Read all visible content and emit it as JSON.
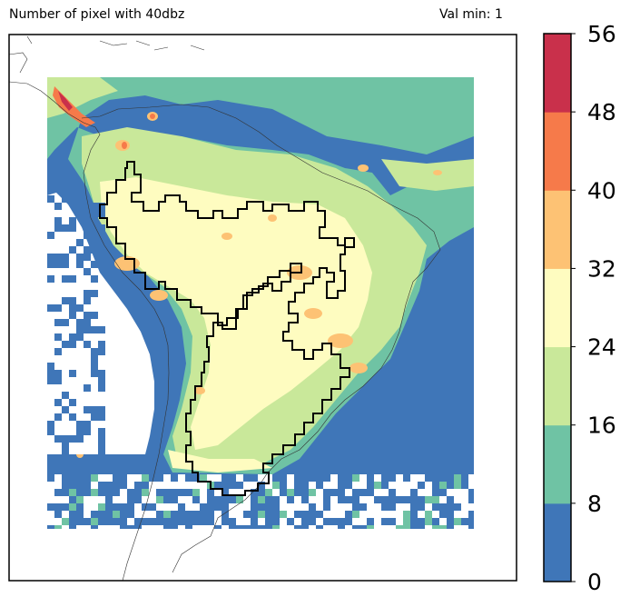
{
  "header": {
    "title_left": "Number of pixel with 40dbz",
    "title_right": "Val min: 1"
  },
  "colorbar": {
    "levels": [
      0,
      8,
      16,
      24,
      32,
      40,
      48,
      56
    ],
    "tick_labels": [
      "0",
      "8",
      "16",
      "24",
      "32",
      "40",
      "48",
      "56"
    ],
    "colors": [
      "#3f76b8",
      "#6fc3a4",
      "#c9e89a",
      "#fefcc0",
      "#fdc274",
      "#f67a4a",
      "#c9304b"
    ]
  },
  "map": {
    "land_outline_color": "#333333",
    "basin_outline_color": "#000000",
    "nodata_color": "#ffffff"
  }
}
